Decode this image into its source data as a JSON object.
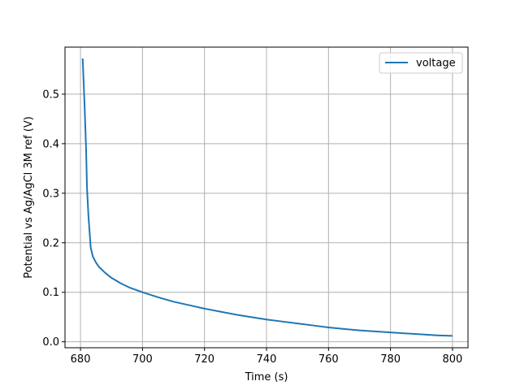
{
  "chart_data": {
    "type": "line",
    "title": "",
    "xlabel": "Time (s)",
    "ylabel": "Potential vs Ag/AgCl 3M ref (V)",
    "xlim": [
      675,
      805
    ],
    "ylim": [
      -0.012,
      0.595
    ],
    "xticks": [
      680,
      700,
      720,
      740,
      760,
      780,
      800
    ],
    "yticks": [
      0.0,
      0.1,
      0.2,
      0.3,
      0.4,
      0.5
    ],
    "xtick_labels": [
      "680",
      "700",
      "720",
      "740",
      "760",
      "780",
      "800"
    ],
    "ytick_labels": [
      "0.0",
      "0.1",
      "0.2",
      "0.3",
      "0.4",
      "0.5"
    ],
    "grid": true,
    "legend_position": "top-right",
    "series": [
      {
        "name": "voltage",
        "color": "#1f77b4",
        "x": [
          680.7,
          681.3,
          681.8,
          682.1,
          682.6,
          683.3,
          684,
          685,
          686,
          688,
          690,
          693,
          696,
          700,
          705,
          710,
          715,
          720,
          725,
          730,
          735,
          740,
          745,
          750,
          755,
          760,
          765,
          770,
          775,
          780,
          785,
          790,
          795,
          800
        ],
        "y": [
          0.572,
          0.48,
          0.39,
          0.31,
          0.25,
          0.19,
          0.172,
          0.16,
          0.151,
          0.139,
          0.129,
          0.118,
          0.109,
          0.1,
          0.09,
          0.081,
          0.074,
          0.067,
          0.061,
          0.055,
          0.05,
          0.045,
          0.041,
          0.037,
          0.033,
          0.029,
          0.026,
          0.023,
          0.021,
          0.019,
          0.017,
          0.015,
          0.013,
          0.012
        ]
      }
    ]
  }
}
